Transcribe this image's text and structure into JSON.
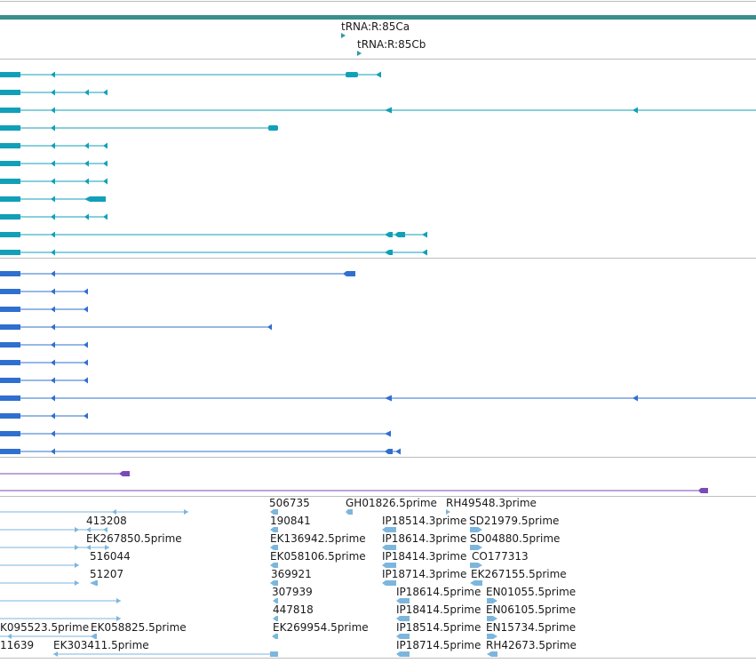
{
  "colors": {
    "track_bar": "#3a8f8c",
    "separator": "#bdbdbd",
    "trna": "#2e9aa6",
    "gene_teal": "#11a0b8",
    "gene_blue": "#2f6fcf",
    "gene_purple": "#7a4bb6",
    "est": "#7db6dd",
    "label": "#1a1a1a"
  },
  "trna_labels": [
    "tRNA:R:85Ca",
    "tRNA:R:85Cb"
  ],
  "est_labels": [
    "506735",
    "GH01826.5prime",
    "RH49548.3prime",
    "413208",
    "190841",
    "IP18514.3prime",
    "SD21979.5prime",
    "EK267850.5prime",
    "EK136942.5prime",
    "IP18614.3prime",
    "SD04880.5prime",
    "516044",
    "EK058106.5prime",
    "IP18414.3prime",
    "CO177313",
    "51207",
    "369921",
    "IP18714.3prime",
    "EK267155.5prime",
    "307939",
    "IP18614.5prime",
    "EN01055.5prime",
    "447818",
    "IP18414.5prime",
    "EN06105.5prime",
    "K095523.5prime",
    "EK058825.5prime",
    "EK269954.5prime",
    "IP18514.5prime",
    "EN15734.5prime",
    "11639",
    "EK303411.5prime",
    "IP18714.5prime",
    "RH42673.5prime"
  ]
}
